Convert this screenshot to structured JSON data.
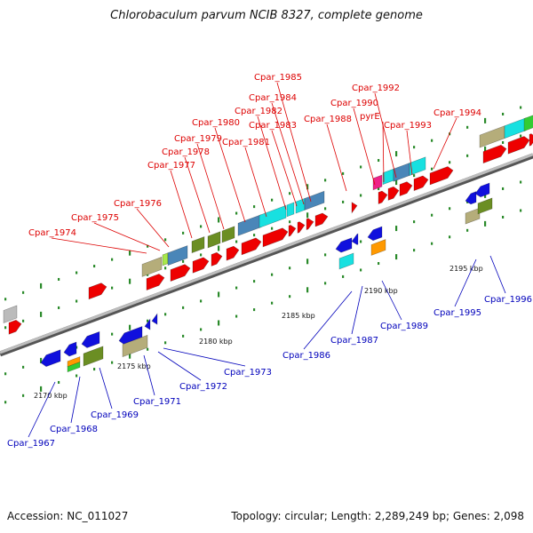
{
  "title": "Chlorobaculum parvum NCIB 8327, complete genome",
  "accession": "Accession: NC_011027",
  "summary": "Topology: circular; Length: 2,289,249 bp; Genes: 2,098",
  "colors": {
    "top_label": "#dd0000",
    "bottom_label": "#0000bb",
    "backbone": "#8c8c8c",
    "tick": "#2a8a2a"
  },
  "kbp_labels": [
    "2170 kbp",
    "2175 kbp",
    "2180 kbp",
    "2185 kbp",
    "2190 kbp",
    "2195 kbp"
  ],
  "top_labels": [
    "Cpar_1974",
    "Cpar_1975",
    "Cpar_1976",
    "Cpar_1977",
    "Cpar_1978",
    "Cpar_1979",
    "Cpar_1980",
    "Cpar_1981",
    "Cpar_1982",
    "Cpar_1983",
    "Cpar_1984",
    "Cpar_1985",
    "Cpar_1988",
    "Cpar_1990",
    "pyrE",
    "Cpar_1992",
    "Cpar_1993",
    "Cpar_1994"
  ],
  "bottom_labels": [
    "Cpar_1967",
    "Cpar_1968",
    "Cpar_1969",
    "Cpar_1971",
    "Cpar_1972",
    "Cpar_1973",
    "Cpar_1986",
    "Cpar_1987",
    "Cpar_1989",
    "Cpar_1995",
    "Cpar_1996"
  ]
}
